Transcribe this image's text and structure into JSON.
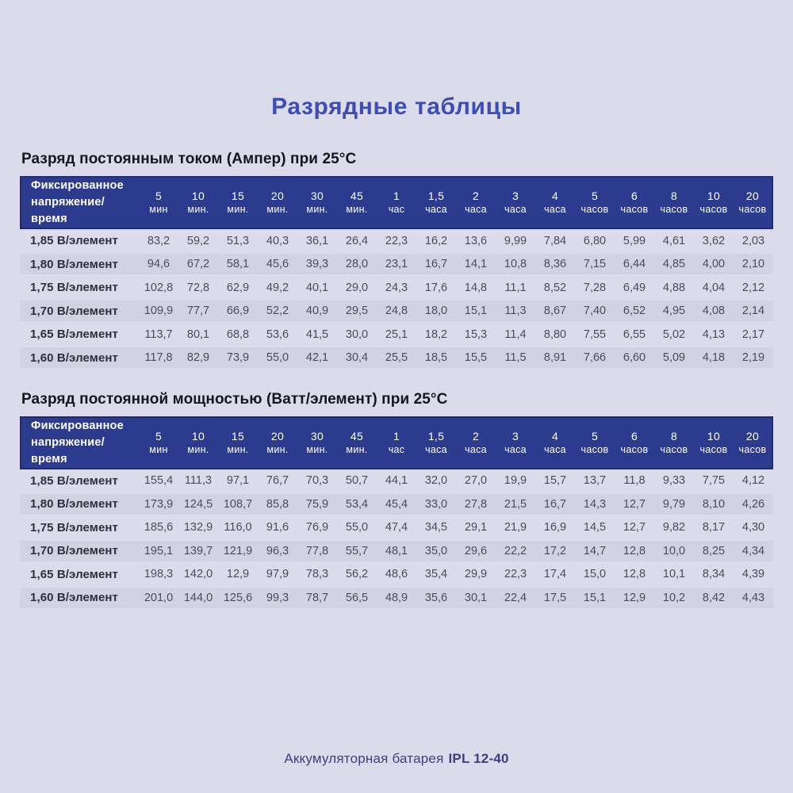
{
  "page": {
    "title": "Разрядные таблицы",
    "footer": {
      "prefix": "Аккумуляторная батарея",
      "model": "IPL 12-40"
    }
  },
  "colors": {
    "page_background": "#dcdbeb",
    "table_header_background": "#2c3b8d",
    "table_header_border": "#1f2c72",
    "row_stripe": "#d2d2e3",
    "title_accent": "#3d4db2",
    "footer_text": "#3d3f80"
  },
  "tables": [
    {
      "subtitle": "Разряд постоянным током (Ампер) при 25°C",
      "corner_label": "Фиксированное напряжение/время",
      "columns": [
        {
          "num": "5",
          "unit": "мин"
        },
        {
          "num": "10",
          "unit": "мин."
        },
        {
          "num": "15",
          "unit": "мин."
        },
        {
          "num": "20",
          "unit": "мин."
        },
        {
          "num": "30",
          "unit": "мин."
        },
        {
          "num": "45",
          "unit": "мин."
        },
        {
          "num": "1",
          "unit": "час"
        },
        {
          "num": "1,5",
          "unit": "часа"
        },
        {
          "num": "2",
          "unit": "часа"
        },
        {
          "num": "3",
          "unit": "часа"
        },
        {
          "num": "4",
          "unit": "часа"
        },
        {
          "num": "5",
          "unit": "часов"
        },
        {
          "num": "6",
          "unit": "часов"
        },
        {
          "num": "8",
          "unit": "часов"
        },
        {
          "num": "10",
          "unit": "часов"
        },
        {
          "num": "20",
          "unit": "часов"
        }
      ],
      "rows": [
        {
          "label": "1,85 В/элемент",
          "values": [
            "83,2",
            "59,2",
            "51,3",
            "40,3",
            "36,1",
            "26,4",
            "22,3",
            "16,2",
            "13,6",
            "9,99",
            "7,84",
            "6,80",
            "5,99",
            "4,61",
            "3,62",
            "2,03"
          ]
        },
        {
          "label": "1,80 В/элемент",
          "values": [
            "94,6",
            "67,2",
            "58,1",
            "45,6",
            "39,3",
            "28,0",
            "23,1",
            "16,7",
            "14,1",
            "10,8",
            "8,36",
            "7,15",
            "6,44",
            "4,85",
            "4,00",
            "2,10"
          ]
        },
        {
          "label": "1,75 В/элемент",
          "values": [
            "102,8",
            "72,8",
            "62,9",
            "49,2",
            "40,1",
            "29,0",
            "24,3",
            "17,6",
            "14,8",
            "11,1",
            "8,52",
            "7,28",
            "6,49",
            "4,88",
            "4,04",
            "2,12"
          ]
        },
        {
          "label": "1,70 В/элемент",
          "values": [
            "109,9",
            "77,7",
            "66,9",
            "52,2",
            "40,9",
            "29,5",
            "24,8",
            "18,0",
            "15,1",
            "11,3",
            "8,67",
            "7,40",
            "6,52",
            "4,95",
            "4,08",
            "2,14"
          ]
        },
        {
          "label": "1,65 В/элемент",
          "values": [
            "113,7",
            "80,1",
            "68,8",
            "53,6",
            "41,5",
            "30,0",
            "25,1",
            "18,2",
            "15,3",
            "11,4",
            "8,80",
            "7,55",
            "6,55",
            "5,02",
            "4,13",
            "2,17"
          ]
        },
        {
          "label": "1,60 В/элемент",
          "values": [
            "117,8",
            "82,9",
            "73,9",
            "55,0",
            "42,1",
            "30,4",
            "25,5",
            "18,5",
            "15,5",
            "11,5",
            "8,91",
            "7,66",
            "6,60",
            "5,09",
            "4,18",
            "2,19"
          ]
        }
      ]
    },
    {
      "subtitle": "Разряд постоянной мощностью (Ватт/элемент) при 25°C",
      "corner_label": "Фиксированное напряжение/время",
      "columns": [
        {
          "num": "5",
          "unit": "мин"
        },
        {
          "num": "10",
          "unit": "мин."
        },
        {
          "num": "15",
          "unit": "мин."
        },
        {
          "num": "20",
          "unit": "мин."
        },
        {
          "num": "30",
          "unit": "мин."
        },
        {
          "num": "45",
          "unit": "мин."
        },
        {
          "num": "1",
          "unit": "час"
        },
        {
          "num": "1,5",
          "unit": "часа"
        },
        {
          "num": "2",
          "unit": "часа"
        },
        {
          "num": "3",
          "unit": "часа"
        },
        {
          "num": "4",
          "unit": "часа"
        },
        {
          "num": "5",
          "unit": "часов"
        },
        {
          "num": "6",
          "unit": "часов"
        },
        {
          "num": "8",
          "unit": "часов"
        },
        {
          "num": "10",
          "unit": "часов"
        },
        {
          "num": "20",
          "unit": "часов"
        }
      ],
      "rows": [
        {
          "label": "1,85 В/элемент",
          "values": [
            "155,4",
            "111,3",
            "97,1",
            "76,7",
            "70,3",
            "50,7",
            "44,1",
            "32,0",
            "27,0",
            "19,9",
            "15,7",
            "13,7",
            "11,8",
            "9,33",
            "7,75",
            "4,12"
          ]
        },
        {
          "label": "1,80 В/элемент",
          "values": [
            "173,9",
            "124,5",
            "108,7",
            "85,8",
            "75,9",
            "53,4",
            "45,4",
            "33,0",
            "27,8",
            "21,5",
            "16,7",
            "14,3",
            "12,7",
            "9,79",
            "8,10",
            "4,26"
          ]
        },
        {
          "label": "1,75 В/элемент",
          "values": [
            "185,6",
            "132,9",
            "116,0",
            "91,6",
            "76,9",
            "55,0",
            "47,4",
            "34,5",
            "29,1",
            "21,9",
            "16,9",
            "14,5",
            "12,7",
            "9,82",
            "8,17",
            "4,30"
          ]
        },
        {
          "label": "1,70 В/элемент",
          "values": [
            "195,1",
            "139,7",
            "121,9",
            "96,3",
            "77,8",
            "55,7",
            "48,1",
            "35,0",
            "29,6",
            "22,2",
            "17,2",
            "14,7",
            "12,8",
            "10,0",
            "8,25",
            "4,34"
          ]
        },
        {
          "label": "1,65 В/элемент",
          "values": [
            "198,3",
            "142,0",
            "12,9",
            "97,9",
            "78,3",
            "56,2",
            "48,6",
            "35,4",
            "29,9",
            "22,3",
            "17,4",
            "15,0",
            "12,8",
            "10,1",
            "8,34",
            "4,39"
          ]
        },
        {
          "label": "1,60 В/элемент",
          "values": [
            "201,0",
            "144,0",
            "125,6",
            "99,3",
            "78,7",
            "56,5",
            "48,9",
            "35,6",
            "30,1",
            "22,4",
            "17,5",
            "15,1",
            "12,9",
            "10,2",
            "8,42",
            "4,43"
          ]
        }
      ]
    }
  ]
}
